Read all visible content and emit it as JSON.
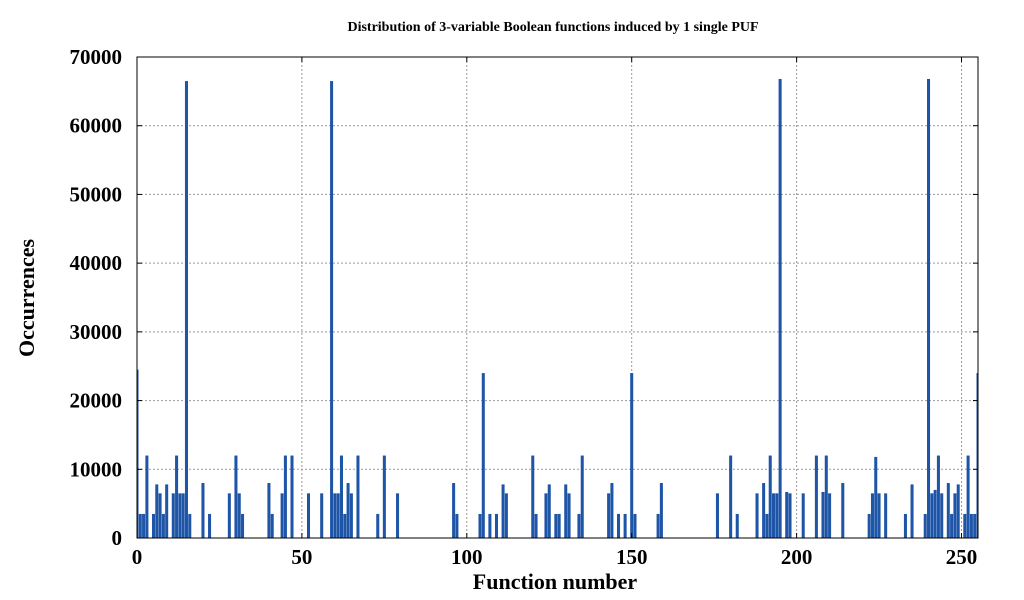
{
  "chart_data": {
    "type": "bar",
    "title": "Distribution of 3-variable Boolean functions induced by 1 single PUF",
    "xlabel": "Function number",
    "ylabel": "Occurrences",
    "xlim": [
      0,
      255
    ],
    "ylim": [
      0,
      70000
    ],
    "xticks": [
      0,
      50,
      100,
      150,
      200,
      250
    ],
    "yticks": [
      0,
      10000,
      20000,
      30000,
      40000,
      50000,
      60000,
      70000
    ],
    "grid": true,
    "bar_color": "#1f55a6",
    "x": [
      0,
      1,
      2,
      3,
      5,
      6,
      7,
      8,
      9,
      11,
      12,
      13,
      14,
      15,
      16,
      20,
      22,
      28,
      30,
      31,
      32,
      40,
      41,
      44,
      45,
      47,
      52,
      56,
      59,
      60,
      61,
      62,
      63,
      64,
      65,
      67,
      73,
      75,
      79,
      96,
      97,
      104,
      105,
      107,
      109,
      111,
      112,
      120,
      121,
      124,
      125,
      127,
      128,
      130,
      131,
      134,
      135,
      143,
      144,
      146,
      148,
      150,
      151,
      158,
      159,
      176,
      180,
      182,
      188,
      190,
      191,
      192,
      193,
      194,
      195,
      197,
      198,
      202,
      206,
      208,
      209,
      210,
      214,
      222,
      223,
      224,
      225,
      227,
      233,
      235,
      239,
      240,
      241,
      242,
      243,
      244,
      246,
      247,
      248,
      249,
      251,
      252,
      253,
      254,
      255
    ],
    "values": [
      24500,
      3500,
      3500,
      12000,
      3500,
      7800,
      6500,
      3500,
      7800,
      6500,
      12000,
      6500,
      6500,
      66500,
      3500,
      8000,
      3500,
      6500,
      12000,
      6500,
      3500,
      8000,
      3500,
      6500,
      12000,
      12000,
      6500,
      6500,
      66500,
      6500,
      6500,
      12000,
      3500,
      8000,
      6500,
      12000,
      3500,
      12000,
      6500,
      8000,
      3500,
      3500,
      24000,
      3500,
      3500,
      7800,
      6500,
      12000,
      3500,
      6500,
      7800,
      3500,
      3500,
      7800,
      6500,
      3500,
      12000,
      6500,
      8000,
      3500,
      3500,
      24000,
      3500,
      3500,
      8000,
      6500,
      12000,
      3500,
      6500,
      8000,
      3500,
      12000,
      6500,
      6500,
      66800,
      6700,
      6500,
      6500,
      12000,
      6700,
      12000,
      6500,
      8000,
      3500,
      6500,
      11800,
      6500,
      6500,
      3500,
      7800,
      3500,
      66800,
      6500,
      7000,
      12000,
      6500,
      8000,
      3500,
      6500,
      7800,
      3500,
      12000,
      3500,
      3500,
      24000
    ]
  }
}
